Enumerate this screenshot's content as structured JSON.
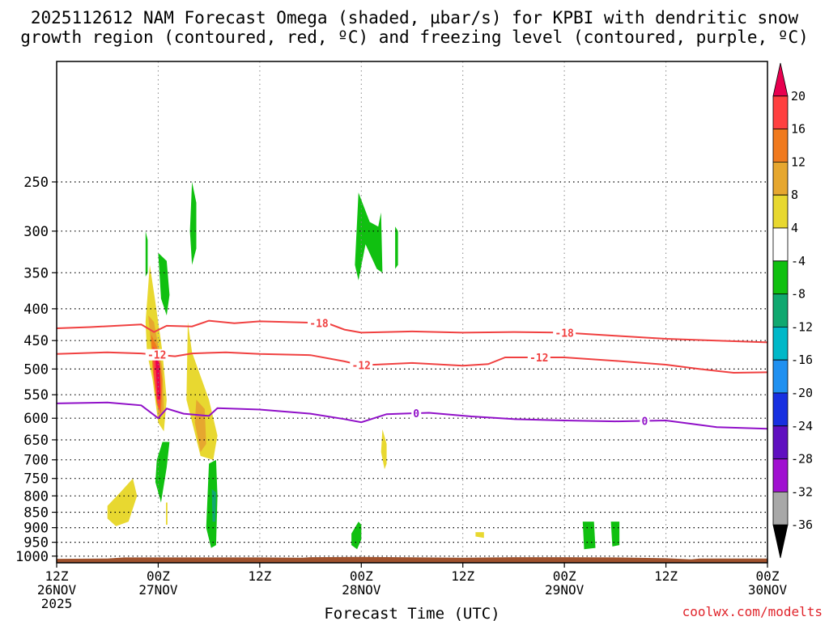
{
  "chart_data": {
    "type": "heatmap",
    "title_lines": [
      "2025112612 NAM Forecast Omega (shaded, µbar/s) for KPBI with dendritic snow",
      "growth region (contoured, red, ºC) and freezing level (contoured, purple, ºC)"
    ],
    "xlabel": "Forecast Time (UTC)",
    "x_range": [
      "2025-11-26T12:00Z",
      "2025-11-30T00:00Z"
    ],
    "x_ticks": [
      {
        "time": "2025-11-26T12:00Z",
        "label": [
          "12Z",
          "26NOV",
          "2025"
        ]
      },
      {
        "time": "2025-11-27T00:00Z",
        "label": [
          "00Z",
          "27NOV"
        ]
      },
      {
        "time": "2025-11-27T12:00Z",
        "label": [
          "12Z"
        ]
      },
      {
        "time": "2025-11-28T00:00Z",
        "label": [
          "00Z",
          "28NOV"
        ]
      },
      {
        "time": "2025-11-28T12:00Z",
        "label": [
          "12Z"
        ]
      },
      {
        "time": "2025-11-29T00:00Z",
        "label": [
          "00Z",
          "29NOV"
        ]
      },
      {
        "time": "2025-11-29T12:00Z",
        "label": [
          "12Z"
        ]
      },
      {
        "time": "2025-11-30T00:00Z",
        "label": [
          "00Z",
          "30NOV"
        ]
      }
    ],
    "y_scale": "log",
    "y_range": [
      1025,
      160
    ],
    "y_ticks": [
      250,
      300,
      350,
      400,
      450,
      500,
      550,
      600,
      650,
      700,
      750,
      800,
      850,
      900,
      950,
      1000
    ],
    "grid": true,
    "colorbar": {
      "labels": [
        "20",
        "16",
        "12",
        "8",
        "4",
        "-4",
        "-8",
        "-12",
        "-16",
        "-20",
        "-24",
        "-28",
        "-32",
        "-36"
      ],
      "colors": [
        "#e8004f",
        "#ff4040",
        "#f07a1e",
        "#e6a72f",
        "#e8d830",
        "#ffffff",
        "#10c010",
        "#10a870",
        "#00b8c8",
        "#2090f0",
        "#1830e0",
        "#6010c0",
        "#a010d0",
        "#a8a8a8",
        "#000000"
      ]
    },
    "contours": [
      {
        "level": -18,
        "label": "-18",
        "color": "#f04040",
        "points": [
          [
            "2025-11-26T12:00Z",
            430
          ],
          [
            "2025-11-26T16:00Z",
            428
          ],
          [
            "2025-11-26T22:00Z",
            424
          ],
          [
            "2025-11-26T23:30Z",
            436
          ],
          [
            "2025-11-27T01:00Z",
            426
          ],
          [
            "2025-11-27T04:00Z",
            427
          ],
          [
            "2025-11-27T06:00Z",
            418
          ],
          [
            "2025-11-27T09:00Z",
            422
          ],
          [
            "2025-11-27T12:00Z",
            419
          ],
          [
            "2025-11-27T18:00Z",
            421
          ],
          [
            "2025-11-27T20:00Z",
            422
          ],
          [
            "2025-11-27T22:00Z",
            432
          ],
          [
            "2025-11-28T00:00Z",
            437
          ],
          [
            "2025-11-28T06:00Z",
            435
          ],
          [
            "2025-11-28T12:00Z",
            437
          ],
          [
            "2025-11-28T18:00Z",
            436
          ],
          [
            "2025-11-29T00:00Z",
            437
          ],
          [
            "2025-11-29T06:00Z",
            442
          ],
          [
            "2025-11-29T12:00Z",
            447
          ],
          [
            "2025-11-29T18:00Z",
            450
          ],
          [
            "2025-11-30T00:00Z",
            453
          ]
        ]
      },
      {
        "level": -12,
        "label": "-12",
        "color": "#f04040",
        "points": [
          [
            "2025-11-26T12:00Z",
            473
          ],
          [
            "2025-11-26T18:00Z",
            470
          ],
          [
            "2025-11-26T22:00Z",
            472
          ],
          [
            "2025-11-27T02:00Z",
            477
          ],
          [
            "2025-11-27T04:00Z",
            472
          ],
          [
            "2025-11-27T08:00Z",
            470
          ],
          [
            "2025-11-27T12:00Z",
            473
          ],
          [
            "2025-11-27T18:00Z",
            475
          ],
          [
            "2025-11-27T22:00Z",
            486
          ],
          [
            "2025-11-28T00:00Z",
            493
          ],
          [
            "2025-11-28T06:00Z",
            489
          ],
          [
            "2025-11-28T12:00Z",
            494
          ],
          [
            "2025-11-28T15:00Z",
            491
          ],
          [
            "2025-11-28T17:00Z",
            479
          ],
          [
            "2025-11-29T00:00Z",
            479
          ],
          [
            "2025-11-29T06:00Z",
            485
          ],
          [
            "2025-11-29T12:00Z",
            492
          ],
          [
            "2025-11-29T16:00Z",
            500
          ],
          [
            "2025-11-29T20:00Z",
            507
          ],
          [
            "2025-11-30T00:00Z",
            506
          ]
        ]
      },
      {
        "level": 0,
        "label": "0",
        "color": "#9010c8",
        "points": [
          [
            "2025-11-26T12:00Z",
            568
          ],
          [
            "2025-11-26T18:00Z",
            566
          ],
          [
            "2025-11-26T22:00Z",
            572
          ],
          [
            "2025-11-27T00:00Z",
            600
          ],
          [
            "2025-11-27T01:00Z",
            579
          ],
          [
            "2025-11-27T03:00Z",
            590
          ],
          [
            "2025-11-27T06:00Z",
            595
          ],
          [
            "2025-11-27T07:00Z",
            578
          ],
          [
            "2025-11-27T12:00Z",
            581
          ],
          [
            "2025-11-27T18:00Z",
            590
          ],
          [
            "2025-11-27T22:00Z",
            602
          ],
          [
            "2025-11-28T00:00Z",
            609
          ],
          [
            "2025-11-28T03:00Z",
            591
          ],
          [
            "2025-11-28T08:00Z",
            588
          ],
          [
            "2025-11-28T13:00Z",
            596
          ],
          [
            "2025-11-28T18:00Z",
            602
          ],
          [
            "2025-11-29T00:00Z",
            605
          ],
          [
            "2025-11-29T06:00Z",
            607
          ],
          [
            "2025-11-29T12:00Z",
            605
          ],
          [
            "2025-11-29T18:00Z",
            620
          ],
          [
            "2025-11-30T00:00Z",
            624
          ]
        ]
      }
    ],
    "shaded_areas": [
      {
        "sign": "positive",
        "level": 4,
        "points": [
          [
            "2025-11-26T22:30Z",
            420
          ],
          [
            "2025-11-26T23:00Z",
            340
          ],
          [
            "2025-11-26T23:40Z",
            390
          ],
          [
            "2025-11-27T00:30Z",
            470
          ],
          [
            "2025-11-27T01:00Z",
            560
          ],
          [
            "2025-11-27T00:40Z",
            630
          ],
          [
            "2025-11-27T00:00Z",
            610
          ],
          [
            "2025-11-26T23:20Z",
            520
          ],
          [
            "2025-11-26T22:40Z",
            470
          ]
        ]
      },
      {
        "sign": "positive",
        "level": 8,
        "points": [
          [
            "2025-11-26T22:50Z",
            410
          ],
          [
            "2025-11-26T23:30Z",
            420
          ],
          [
            "2025-11-27T00:30Z",
            500
          ],
          [
            "2025-11-27T00:40Z",
            580
          ],
          [
            "2025-11-27T00:05Z",
            600
          ],
          [
            "2025-11-26T23:30Z",
            520
          ]
        ]
      },
      {
        "sign": "positive",
        "level": 12,
        "points": [
          [
            "2025-11-26T23:10Z",
            440
          ],
          [
            "2025-11-26T23:50Z",
            460
          ],
          [
            "2025-11-27T00:30Z",
            520
          ],
          [
            "2025-11-27T00:20Z",
            590
          ],
          [
            "2025-11-26T23:50Z",
            570
          ],
          [
            "2025-11-26T23:20Z",
            500
          ]
        ]
      },
      {
        "sign": "positive",
        "level": 16,
        "points": [
          [
            "2025-11-26T23:20Z",
            460
          ],
          [
            "2025-11-27T00:05Z",
            470
          ],
          [
            "2025-11-27T00:20Z",
            540
          ],
          [
            "2025-11-27T00:10Z",
            585
          ],
          [
            "2025-11-26T23:50Z",
            560
          ],
          [
            "2025-11-26T23:30Z",
            510
          ]
        ]
      },
      {
        "sign": "positive",
        "level": 20,
        "points": [
          [
            "2025-11-26T23:40Z",
            480
          ],
          [
            "2025-11-27T00:10Z",
            490
          ],
          [
            "2025-11-27T00:15Z",
            560
          ],
          [
            "2025-11-26T23:55Z",
            560
          ]
        ]
      },
      {
        "sign": "positive",
        "level": 4,
        "points": [
          [
            "2025-11-27T03:30Z",
            420
          ],
          [
            "2025-11-27T04:00Z",
            470
          ],
          [
            "2025-11-27T06:00Z",
            560
          ],
          [
            "2025-11-27T07:00Z",
            640
          ],
          [
            "2025-11-27T06:30Z",
            700
          ],
          [
            "2025-11-27T05:00Z",
            690
          ],
          [
            "2025-11-27T03:20Z",
            560
          ]
        ]
      },
      {
        "sign": "positive",
        "level": 8,
        "points": [
          [
            "2025-11-27T04:30Z",
            560
          ],
          [
            "2025-11-27T05:30Z",
            580
          ],
          [
            "2025-11-27T05:40Z",
            660
          ],
          [
            "2025-11-27T05:00Z",
            680
          ],
          [
            "2025-11-27T04:20Z",
            610
          ]
        ]
      },
      {
        "sign": "positive",
        "level": 4,
        "points": [
          [
            "2025-11-26T18:00Z",
            830
          ],
          [
            "2025-11-26T19:30Z",
            790
          ],
          [
            "2025-11-26T21:00Z",
            750
          ],
          [
            "2025-11-26T21:30Z",
            800
          ],
          [
            "2025-11-26T20:30Z",
            880
          ],
          [
            "2025-11-26T19:00Z",
            895
          ],
          [
            "2025-11-26T18:00Z",
            870
          ]
        ]
      },
      {
        "sign": "positive",
        "level": 4,
        "points": [
          [
            "2025-11-28T02:30Z",
            625
          ],
          [
            "2025-11-28T03:00Z",
            660
          ],
          [
            "2025-11-28T03:00Z",
            710
          ],
          [
            "2025-11-28T02:45Z",
            725
          ],
          [
            "2025-11-28T02:20Z",
            680
          ]
        ]
      },
      {
        "sign": "positive",
        "level": 4,
        "points": [
          [
            "2025-11-28T13:30Z",
            915
          ],
          [
            "2025-11-28T14:30Z",
            915
          ],
          [
            "2025-11-28T14:30Z",
            935
          ],
          [
            "2025-11-28T13:30Z",
            930
          ]
        ]
      },
      {
        "sign": "positive",
        "level": 4,
        "points": [
          [
            "2025-11-27T00:55Z",
            820
          ],
          [
            "2025-11-27T01:05Z",
            820
          ],
          [
            "2025-11-27T01:05Z",
            890
          ],
          [
            "2025-11-27T00:55Z",
            890
          ]
        ]
      },
      {
        "sign": "negative",
        "level": -4,
        "points": [
          [
            "2025-11-26T22:30Z",
            300
          ],
          [
            "2025-11-26T22:45Z",
            310
          ],
          [
            "2025-11-26T22:45Z",
            350
          ],
          [
            "2025-11-26T22:30Z",
            355
          ]
        ]
      },
      {
        "sign": "negative",
        "level": -4,
        "points": [
          [
            "2025-11-27T00:00Z",
            325
          ],
          [
            "2025-11-27T01:00Z",
            335
          ],
          [
            "2025-11-27T01:20Z",
            380
          ],
          [
            "2025-11-27T01:00Z",
            410
          ],
          [
            "2025-11-27T00:20Z",
            385
          ]
        ]
      },
      {
        "sign": "negative",
        "level": -4,
        "points": [
          [
            "2025-11-27T04:00Z",
            250
          ],
          [
            "2025-11-27T04:30Z",
            270
          ],
          [
            "2025-11-27T04:30Z",
            320
          ],
          [
            "2025-11-27T04:00Z",
            340
          ],
          [
            "2025-11-27T03:45Z",
            300
          ]
        ]
      },
      {
        "sign": "negative",
        "level": -4,
        "points": [
          [
            "2025-11-27T00:30Z",
            655
          ],
          [
            "2025-11-27T01:20Z",
            655
          ],
          [
            "2025-11-27T01:00Z",
            720
          ],
          [
            "2025-11-27T00:20Z",
            820
          ],
          [
            "2025-11-26T23:40Z",
            760
          ],
          [
            "2025-11-26T23:50Z",
            700
          ]
        ]
      },
      {
        "sign": "negative",
        "level": -4,
        "points": [
          [
            "2025-11-27T06:00Z",
            710
          ],
          [
            "2025-11-27T06:50Z",
            700
          ],
          [
            "2025-11-27T07:00Z",
            800
          ],
          [
            "2025-11-27T06:50Z",
            960
          ],
          [
            "2025-11-27T06:15Z",
            970
          ],
          [
            "2025-11-27T05:40Z",
            900
          ]
        ]
      },
      {
        "sign": "negative",
        "level": -8,
        "points": [
          [
            "2025-11-27T06:20Z",
            780
          ],
          [
            "2025-11-27T06:50Z",
            790
          ],
          [
            "2025-11-27T06:45Z",
            880
          ],
          [
            "2025-11-27T06:25Z",
            880
          ]
        ]
      },
      {
        "sign": "negative",
        "level": -4,
        "points": [
          [
            "2025-11-27T23:40Z",
            260
          ],
          [
            "2025-11-28T01:00Z",
            290
          ],
          [
            "2025-11-28T02:00Z",
            295
          ],
          [
            "2025-11-28T02:20Z",
            280
          ],
          [
            "2025-11-28T02:30Z",
            350
          ],
          [
            "2025-11-28T01:50Z",
            345
          ],
          [
            "2025-11-28T00:30Z",
            315
          ],
          [
            "2025-11-27T23:40Z",
            360
          ],
          [
            "2025-11-27T23:15Z",
            340
          ]
        ]
      },
      {
        "sign": "negative",
        "level": -4,
        "points": [
          [
            "2025-11-28T04:00Z",
            295
          ],
          [
            "2025-11-28T04:20Z",
            300
          ],
          [
            "2025-11-28T04:20Z",
            340
          ],
          [
            "2025-11-28T04:00Z",
            345
          ]
        ]
      },
      {
        "sign": "negative",
        "level": -4,
        "points": [
          [
            "2025-11-27T22:50Z",
            920
          ],
          [
            "2025-11-27T23:40Z",
            880
          ],
          [
            "2025-11-28T00:00Z",
            890
          ],
          [
            "2025-11-28T00:00Z",
            940
          ],
          [
            "2025-11-27T23:30Z",
            975
          ],
          [
            "2025-11-27T22:50Z",
            960
          ]
        ]
      },
      {
        "sign": "negative",
        "level": -4,
        "points": [
          [
            "2025-11-29T02:10Z",
            880
          ],
          [
            "2025-11-29T03:30Z",
            880
          ],
          [
            "2025-11-29T03:40Z",
            970
          ],
          [
            "2025-11-29T02:20Z",
            975
          ]
        ]
      },
      {
        "sign": "negative",
        "level": -4,
        "points": [
          [
            "2025-11-29T05:30Z",
            880
          ],
          [
            "2025-11-29T06:30Z",
            880
          ],
          [
            "2025-11-29T06:30Z",
            960
          ],
          [
            "2025-11-29T05:40Z",
            965
          ]
        ]
      }
    ],
    "surface": {
      "color": "#a0522d",
      "points": [
        [
          "2025-11-26T12:00Z",
          1010
        ],
        [
          "2025-11-26T18:00Z",
          1009
        ],
        [
          "2025-11-26T20:00Z",
          1005
        ],
        [
          "2025-11-27T12:00Z",
          1005
        ],
        [
          "2025-11-27T17:00Z",
          1006
        ],
        [
          "2025-11-27T18:00Z",
          1004
        ],
        [
          "2025-11-28T00:00Z",
          1003
        ],
        [
          "2025-11-28T12:00Z",
          1006
        ],
        [
          "2025-11-28T18:00Z",
          1004
        ],
        [
          "2025-11-29T00:00Z",
          1004
        ],
        [
          "2025-11-29T06:00Z",
          1005
        ],
        [
          "2025-11-29T12:00Z",
          1008
        ],
        [
          "2025-11-29T15:00Z",
          1012
        ],
        [
          "2025-11-29T16:00Z",
          1009
        ],
        [
          "2025-11-30T00:00Z",
          1009
        ]
      ]
    }
  },
  "credit": "coolwx.com/modelts"
}
